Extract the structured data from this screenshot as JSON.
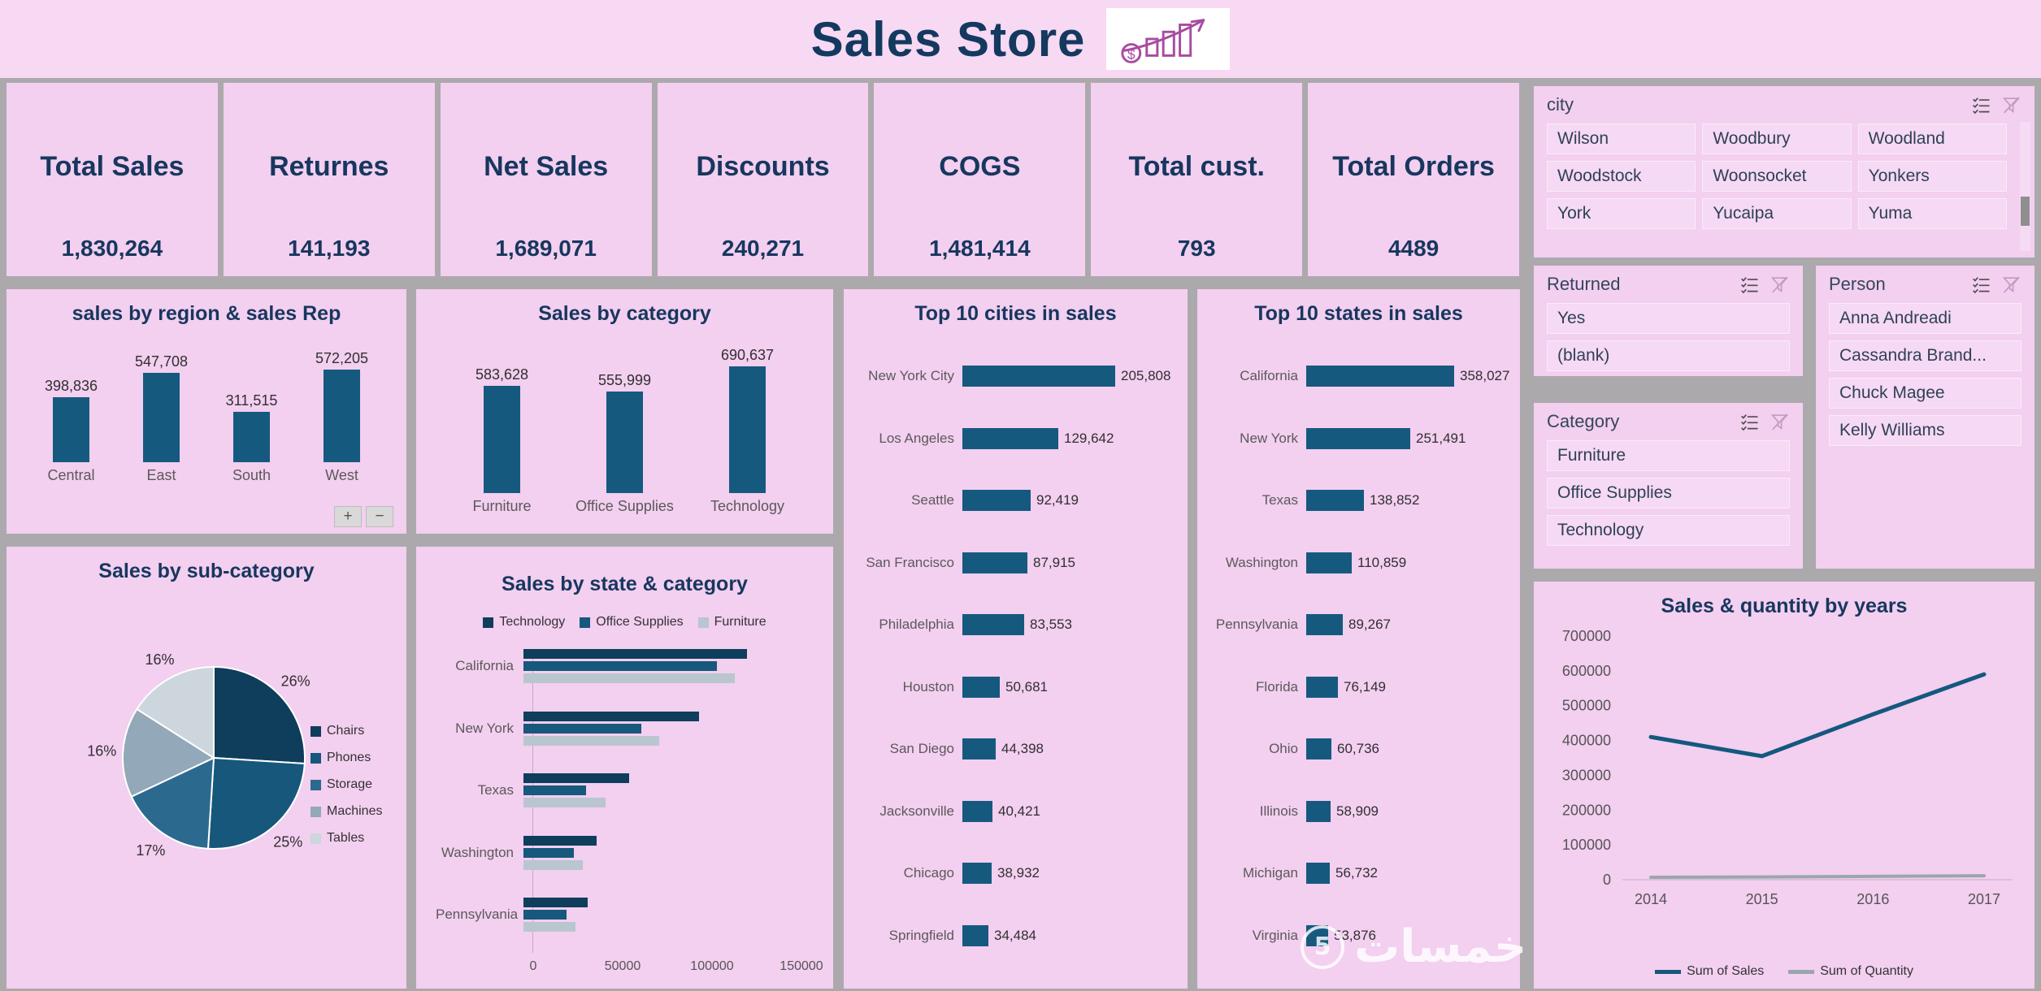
{
  "header": {
    "title": "Sales Store"
  },
  "controls": {
    "zoom_in": "+",
    "zoom_out": "−"
  },
  "watermark": {
    "text": "خمسات",
    "badge": "5"
  },
  "colors": {
    "navy": "#17375E",
    "bar_teal": "#16597F",
    "panel_pink": "#F3CFF0",
    "header_pink": "#F7D9F4",
    "canvas_gray": "#ACA9AC",
    "quantity_gray": "#9AA6AE",
    "logo_purple": "#A94BA0"
  },
  "kpis": [
    {
      "label": "Total Sales",
      "value": "1,830,264"
    },
    {
      "label": "Returnes",
      "value": "141,193"
    },
    {
      "label": "Net Sales",
      "value": "1,689,071"
    },
    {
      "label": "Discounts",
      "value": "240,271"
    },
    {
      "label": "COGS",
      "value": "1,481,414"
    },
    {
      "label": "Total cust.",
      "value": "793"
    },
    {
      "label": "Total Orders",
      "value": "4489"
    }
  ],
  "slicers": {
    "city": {
      "title": "city",
      "icons": [
        "multi-select",
        "clear-filter"
      ],
      "items": [
        "Wilson",
        "Woodbury",
        "Woodland",
        "Woodstock",
        "Woonsocket",
        "Yonkers",
        "York",
        "Yucaipa",
        "Yuma"
      ]
    },
    "returned": {
      "title": "Returned",
      "icons": [
        "multi-select",
        "clear-filter"
      ],
      "items": [
        "Yes",
        "(blank)"
      ]
    },
    "person": {
      "title": "Person",
      "icons": [
        "multi-select",
        "clear-filter"
      ],
      "items": [
        "Anna Andreadi",
        "Cassandra Brand...",
        "Chuck Magee",
        "Kelly Williams"
      ]
    },
    "category": {
      "title": "Category",
      "icons": [
        "multi-select",
        "clear-filter"
      ],
      "items": [
        "Furniture",
        "Office Supplies",
        "Technology"
      ]
    }
  },
  "chart_data": [
    {
      "id": "region_sales",
      "type": "bar",
      "title": "sales by region & sales Rep",
      "categories": [
        "Central",
        "East",
        "South",
        "West"
      ],
      "values": [
        398836,
        547708,
        311515,
        572205
      ],
      "ylim": [
        0,
        600000
      ],
      "grid": false
    },
    {
      "id": "category_sales",
      "type": "bar",
      "title": "Sales by category",
      "categories": [
        "Furniture",
        "Office Supplies",
        "Technology"
      ],
      "values": [
        583628,
        555999,
        690637
      ],
      "ylim": [
        0,
        700000
      ],
      "grid": false
    },
    {
      "id": "top_cities",
      "type": "bar-horizontal",
      "title": "Top 10 cities in sales",
      "categories": [
        "New York City",
        "Los Angeles",
        "Seattle",
        "San Francisco",
        "Philadelphia",
        "Houston",
        "San Diego",
        "Jacksonville",
        "Chicago",
        "Springfield"
      ],
      "values": [
        205808,
        129642,
        92419,
        87915,
        83553,
        50681,
        44398,
        40421,
        38932,
        34484
      ]
    },
    {
      "id": "top_states",
      "type": "bar-horizontal",
      "title": "Top 10 states in sales",
      "categories": [
        "California",
        "New York",
        "Texas",
        "Washington",
        "Pennsylvania",
        "Florida",
        "Ohio",
        "Illinois",
        "Michigan",
        "Virginia"
      ],
      "values": [
        358027,
        251491,
        138852,
        110859,
        89267,
        76149,
        60736,
        58909,
        56732,
        53876
      ]
    },
    {
      "id": "subcategory_pie",
      "type": "pie",
      "title": "Sales by sub-category",
      "legend_position": "right",
      "slices": [
        {
          "label": "Chairs",
          "pct": 26,
          "color": "#0F3D5C"
        },
        {
          "label": "Phones",
          "pct": 25,
          "color": "#17577C"
        },
        {
          "label": "Storage",
          "pct": 17,
          "color": "#2B6A8E"
        },
        {
          "label": "Machines",
          "pct": 16,
          "color": "#93A8B8"
        },
        {
          "label": "Tables",
          "pct": 16,
          "color": "#CDD6DD"
        }
      ]
    },
    {
      "id": "state_category",
      "type": "bar-horizontal-grouped",
      "title": "Sales by state & category",
      "legend_position": "top",
      "series": [
        {
          "name": "Technology",
          "color": "#0F3D5C"
        },
        {
          "name": "Office Supplies",
          "color": "#17587D"
        },
        {
          "name": "Furniture",
          "color": "#B9C6CF"
        }
      ],
      "categories": [
        "California",
        "New York",
        "Texas",
        "Washington",
        "Pennsylvania"
      ],
      "values": [
        [
          125000,
          108000,
          118000
        ],
        [
          98000,
          66000,
          76000
        ],
        [
          59000,
          35000,
          46000
        ],
        [
          41000,
          28000,
          33000
        ],
        [
          36000,
          24000,
          29000
        ]
      ],
      "xticks": [
        0,
        50000,
        100000,
        150000
      ],
      "xlim": [
        0,
        150000
      ]
    },
    {
      "id": "years_trend",
      "type": "line",
      "title": "Sales & quantity by years",
      "x": [
        "2014",
        "2015",
        "2016",
        "2017"
      ],
      "series": [
        {
          "name": "Sum of Sales",
          "color": "#15587E",
          "values": [
            410000,
            355000,
            475000,
            590000
          ]
        },
        {
          "name": "Sum of Quantity",
          "color": "#9AA6AE",
          "values": [
            7000,
            8000,
            9500,
            11500
          ]
        }
      ],
      "yticks": [
        0,
        100000,
        200000,
        300000,
        400000,
        500000,
        600000,
        700000
      ],
      "ylim": [
        0,
        700000
      ],
      "legend_position": "bottom",
      "grid": false
    }
  ]
}
